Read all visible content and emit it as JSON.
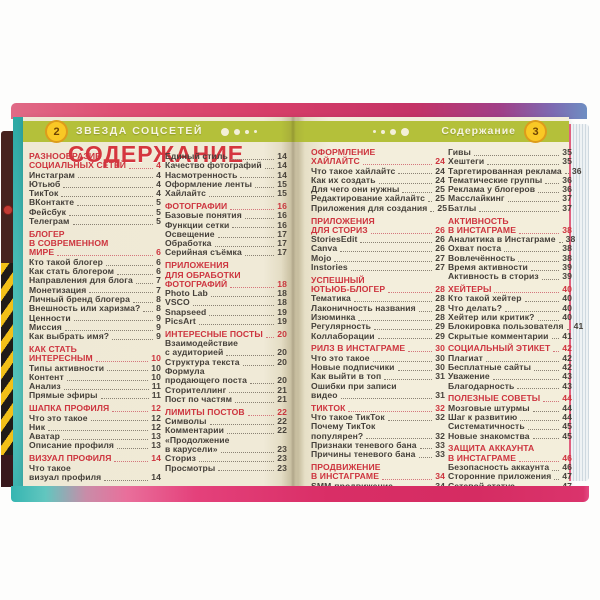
{
  "book": {
    "left_header": {
      "page_num": "2",
      "title": "ЗВЕЗДА СОЦСЕТЕЙ"
    },
    "right_header": {
      "page_num": "3",
      "title": "Содержание"
    },
    "toc_title": "СОДЕРЖАНИЕ",
    "colors": {
      "header_band": "#b4c03a",
      "heading_red": "#cd343e",
      "title_red": "#d5363e",
      "page_cream": "#f0ead7",
      "circle_yellow": "#f9c825",
      "cover_magenta": "#d63e68",
      "edge_teal": "#47bab4",
      "caution_yellow": "#f2c018",
      "caution_black": "#201c18"
    },
    "columns": [
      {
        "entries": [
          {
            "kind": "h",
            "lines": [
              "РАЗНООБРАЗИЕ",
              "СОЦИАЛЬНЫХ СЕТЕЙ"
            ],
            "page": "4"
          },
          {
            "kind": "i",
            "lines": [
              "Инстаграм"
            ],
            "page": "4"
          },
          {
            "kind": "i",
            "lines": [
              "Ютьюб"
            ],
            "page": "4"
          },
          {
            "kind": "i",
            "lines": [
              "ТикТок"
            ],
            "page": "4"
          },
          {
            "kind": "i",
            "lines": [
              "ВКонтакте"
            ],
            "page": "5"
          },
          {
            "kind": "i",
            "lines": [
              "Фейсбук"
            ],
            "page": "5"
          },
          {
            "kind": "i",
            "lines": [
              "Телеграм"
            ],
            "page": "5"
          },
          {
            "kind": "h",
            "lines": [
              "БЛОГЕР",
              "В СОВРЕМЕННОМ",
              "МИРЕ"
            ],
            "page": "6"
          },
          {
            "kind": "i",
            "lines": [
              "Кто такой блогер"
            ],
            "page": "6"
          },
          {
            "kind": "i",
            "lines": [
              "Как стать блогером"
            ],
            "page": "6"
          },
          {
            "kind": "i",
            "lines": [
              "Направления для блога"
            ],
            "page": "7"
          },
          {
            "kind": "i",
            "lines": [
              "Монетизация"
            ],
            "page": "7"
          },
          {
            "kind": "i",
            "lines": [
              "Личный бренд блогера"
            ],
            "page": "8"
          },
          {
            "kind": "i",
            "lines": [
              "Внешность или харизма?"
            ],
            "page": "8"
          },
          {
            "kind": "i",
            "lines": [
              "Ценности"
            ],
            "page": "9"
          },
          {
            "kind": "i",
            "lines": [
              "Миссия"
            ],
            "page": "9"
          },
          {
            "kind": "i",
            "lines": [
              "Как выбрать имя?"
            ],
            "page": "9"
          },
          {
            "kind": "h",
            "lines": [
              "КАК СТАТЬ",
              "ИНТЕРЕСНЫМ"
            ],
            "page": "10"
          },
          {
            "kind": "i",
            "lines": [
              "Типы активности"
            ],
            "page": "10"
          },
          {
            "kind": "i",
            "lines": [
              "Контент"
            ],
            "page": "10"
          },
          {
            "kind": "i",
            "lines": [
              "Анализ"
            ],
            "page": "11"
          },
          {
            "kind": "i",
            "lines": [
              "Прямые эфиры"
            ],
            "page": "11"
          },
          {
            "kind": "h",
            "lines": [
              "ШАПКА ПРОФИЛЯ"
            ],
            "page": "12"
          },
          {
            "kind": "i",
            "lines": [
              "Что это такое"
            ],
            "page": "12"
          },
          {
            "kind": "i",
            "lines": [
              "Ник"
            ],
            "page": "12"
          },
          {
            "kind": "i",
            "lines": [
              "Аватар"
            ],
            "page": "13"
          },
          {
            "kind": "i",
            "lines": [
              "Описание профиля"
            ],
            "page": "13"
          },
          {
            "kind": "h",
            "lines": [
              "ВИЗУАЛ ПРОФИЛЯ"
            ],
            "page": "14"
          },
          {
            "kind": "i",
            "lines": [
              "Что такое",
              "визуал профиля"
            ],
            "page": "14"
          }
        ]
      },
      {
        "entries": [
          {
            "kind": "i",
            "lines": [
              "Единый стиль"
            ],
            "page": "14"
          },
          {
            "kind": "i",
            "lines": [
              "Качество фотографий"
            ],
            "page": "14"
          },
          {
            "kind": "i",
            "lines": [
              "Насмотренность"
            ],
            "page": "14"
          },
          {
            "kind": "i",
            "lines": [
              "Оформление ленты"
            ],
            "page": "15"
          },
          {
            "kind": "i",
            "lines": [
              "Хайлайтс"
            ],
            "page": "15"
          },
          {
            "kind": "h",
            "lines": [
              "ФОТОГРАФИИ"
            ],
            "page": "16"
          },
          {
            "kind": "i",
            "lines": [
              "Базовые понятия"
            ],
            "page": "16"
          },
          {
            "kind": "i",
            "lines": [
              "Функции сетки"
            ],
            "page": "16"
          },
          {
            "kind": "i",
            "lines": [
              "Освещение"
            ],
            "page": "17"
          },
          {
            "kind": "i",
            "lines": [
              "Обработка"
            ],
            "page": "17"
          },
          {
            "kind": "i",
            "lines": [
              "Серийная съёмка"
            ],
            "page": "17"
          },
          {
            "kind": "h",
            "lines": [
              "ПРИЛОЖЕНИЯ",
              "ДЛЯ ОБРАБОТКИ",
              "ФОТОГРАФИЙ"
            ],
            "page": "18"
          },
          {
            "kind": "i",
            "lines": [
              "Photo Lab"
            ],
            "page": "18"
          },
          {
            "kind": "i",
            "lines": [
              "VSCO"
            ],
            "page": "18"
          },
          {
            "kind": "i",
            "lines": [
              "Snapseed"
            ],
            "page": "19"
          },
          {
            "kind": "i",
            "lines": [
              "PicsArt"
            ],
            "page": "19"
          },
          {
            "kind": "h",
            "lines": [
              "ИНТЕРЕСНЫЕ ПОСТЫ"
            ],
            "page": "20"
          },
          {
            "kind": "i",
            "lines": [
              "Взаимодействие",
              "с аудиторией"
            ],
            "page": "20"
          },
          {
            "kind": "i",
            "lines": [
              "Структура текста"
            ],
            "page": "20"
          },
          {
            "kind": "i",
            "lines": [
              "Формула",
              "продающего поста"
            ],
            "page": "20"
          },
          {
            "kind": "i",
            "lines": [
              "Сторителлинг"
            ],
            "page": "21"
          },
          {
            "kind": "i",
            "lines": [
              "Пост по частям"
            ],
            "page": "21"
          },
          {
            "kind": "h",
            "lines": [
              "ЛИМИТЫ ПОСТОВ"
            ],
            "page": "22"
          },
          {
            "kind": "i",
            "lines": [
              "Символы"
            ],
            "page": "22"
          },
          {
            "kind": "i",
            "lines": [
              "Комментарии"
            ],
            "page": "22"
          },
          {
            "kind": "i",
            "lines": [
              "«Продолжение",
              "в карусели»"
            ],
            "page": "23"
          },
          {
            "kind": "i",
            "lines": [
              "Сториз"
            ],
            "page": "23"
          },
          {
            "kind": "i",
            "lines": [
              "Просмотры"
            ],
            "page": "23"
          }
        ]
      },
      {
        "entries": [
          {
            "kind": "h",
            "lines": [
              "ОФОРМЛЕНИЕ",
              "ХАЙЛАЙТС"
            ],
            "page": "24"
          },
          {
            "kind": "i",
            "lines": [
              "Что такое хайлайтс"
            ],
            "page": "24"
          },
          {
            "kind": "i",
            "lines": [
              "Как их создать"
            ],
            "page": "24"
          },
          {
            "kind": "i",
            "lines": [
              "Для чего они нужны"
            ],
            "page": "25"
          },
          {
            "kind": "i",
            "lines": [
              "Редактирование хайлайтс"
            ],
            "page": "25"
          },
          {
            "kind": "i",
            "lines": [
              "Приложения для создания"
            ],
            "page": "25"
          },
          {
            "kind": "h",
            "lines": [
              "ПРИЛОЖЕНИЯ",
              "ДЛЯ СТОРИЗ"
            ],
            "page": "26"
          },
          {
            "kind": "i",
            "lines": [
              "StoriesEdit"
            ],
            "page": "26"
          },
          {
            "kind": "i",
            "lines": [
              "Canva"
            ],
            "page": "26"
          },
          {
            "kind": "i",
            "lines": [
              "Mojo"
            ],
            "page": "27"
          },
          {
            "kind": "i",
            "lines": [
              "Instories"
            ],
            "page": "27"
          },
          {
            "kind": "h",
            "lines": [
              "УСПЕШНЫЙ",
              "ЮТЬЮБ-БЛОГЕР"
            ],
            "page": "28"
          },
          {
            "kind": "i",
            "lines": [
              "Тематика"
            ],
            "page": "28"
          },
          {
            "kind": "i",
            "lines": [
              "Лаконичность названия"
            ],
            "page": "28"
          },
          {
            "kind": "i",
            "lines": [
              "Изюминка"
            ],
            "page": "28"
          },
          {
            "kind": "i",
            "lines": [
              "Регулярность"
            ],
            "page": "29"
          },
          {
            "kind": "i",
            "lines": [
              "Коллаборации"
            ],
            "page": "29"
          },
          {
            "kind": "h",
            "lines": [
              "РИЛЗ В ИНСТАГРАМЕ"
            ],
            "page": "30"
          },
          {
            "kind": "i",
            "lines": [
              "Что это такое"
            ],
            "page": "30"
          },
          {
            "kind": "i",
            "lines": [
              "Новые подписчики"
            ],
            "page": "30"
          },
          {
            "kind": "i",
            "lines": [
              "Как выйти в топ"
            ],
            "page": "31"
          },
          {
            "kind": "i",
            "lines": [
              "Ошибки при записи",
              "видео"
            ],
            "page": "31"
          },
          {
            "kind": "h",
            "lines": [
              "ТИКТОК"
            ],
            "page": "32"
          },
          {
            "kind": "i",
            "lines": [
              "Что такое ТикТок"
            ],
            "page": "32"
          },
          {
            "kind": "i",
            "lines": [
              "Почему ТикТок",
              "популярен?"
            ],
            "page": "32"
          },
          {
            "kind": "i",
            "lines": [
              "Признаки теневого бана"
            ],
            "page": "33"
          },
          {
            "kind": "i",
            "lines": [
              "Причины теневого бана"
            ],
            "page": "33"
          },
          {
            "kind": "h",
            "lines": [
              "ПРОДВИЖЕНИЕ",
              "В ИНСТАГРАМЕ"
            ],
            "page": "34"
          },
          {
            "kind": "i",
            "lines": [
              "SMM-продвижение"
            ],
            "page": "34"
          },
          {
            "kind": "i",
            "lines": [
              "Взаимопиар"
            ],
            "page": "34"
          }
        ]
      },
      {
        "entries": [
          {
            "kind": "i",
            "lines": [
              "Гивы"
            ],
            "page": "35"
          },
          {
            "kind": "i",
            "lines": [
              "Хештеги"
            ],
            "page": "35"
          },
          {
            "kind": "i",
            "lines": [
              "Таргетированная реклама"
            ],
            "page": "36"
          },
          {
            "kind": "i",
            "lines": [
              "Тематические группы"
            ],
            "page": "36"
          },
          {
            "kind": "i",
            "lines": [
              "Реклама у блогеров"
            ],
            "page": "36"
          },
          {
            "kind": "i",
            "lines": [
              "Масслайкинг"
            ],
            "page": "37"
          },
          {
            "kind": "i",
            "lines": [
              "Батлы"
            ],
            "page": "37"
          },
          {
            "kind": "h",
            "lines": [
              "АКТИВНОСТЬ",
              "В ИНСТАГРАМЕ"
            ],
            "page": "38"
          },
          {
            "kind": "i",
            "lines": [
              "Аналитика в Инстаграме"
            ],
            "page": "38"
          },
          {
            "kind": "i",
            "lines": [
              "Охват поста"
            ],
            "page": "38"
          },
          {
            "kind": "i",
            "lines": [
              "Вовлечённость"
            ],
            "page": "38"
          },
          {
            "kind": "i",
            "lines": [
              "Время активности"
            ],
            "page": "39"
          },
          {
            "kind": "i",
            "lines": [
              "Активность в сториз"
            ],
            "page": "39"
          },
          {
            "kind": "h",
            "lines": [
              "ХЕЙТЕРЫ"
            ],
            "page": "40"
          },
          {
            "kind": "i",
            "lines": [
              "Кто такой хейтер"
            ],
            "page": "40"
          },
          {
            "kind": "i",
            "lines": [
              "Что делать?"
            ],
            "page": "40"
          },
          {
            "kind": "i",
            "lines": [
              "Хейтер или критик?"
            ],
            "page": "40"
          },
          {
            "kind": "i",
            "lines": [
              "Блокировка пользователя"
            ],
            "page": "41"
          },
          {
            "kind": "i",
            "lines": [
              "Скрытые комментарии"
            ],
            "page": "41"
          },
          {
            "kind": "h",
            "lines": [
              "СОЦИАЛЬНЫЙ ЭТИКЕТ"
            ],
            "page": "42"
          },
          {
            "kind": "i",
            "lines": [
              "Плагиат"
            ],
            "page": "42"
          },
          {
            "kind": "i",
            "lines": [
              "Бесплатные сайты"
            ],
            "page": "42"
          },
          {
            "kind": "i",
            "lines": [
              "Уважение"
            ],
            "page": "43"
          },
          {
            "kind": "i",
            "lines": [
              "Благодарность"
            ],
            "page": "43"
          },
          {
            "kind": "h",
            "lines": [
              "ПОЛЕЗНЫЕ СОВЕТЫ"
            ],
            "page": "44"
          },
          {
            "kind": "i",
            "lines": [
              "Мозговые штурмы"
            ],
            "page": "44"
          },
          {
            "kind": "i",
            "lines": [
              "Шаг к развитию"
            ],
            "page": "44"
          },
          {
            "kind": "i",
            "lines": [
              "Систематичность"
            ],
            "page": "45"
          },
          {
            "kind": "i",
            "lines": [
              "Новые знакомства"
            ],
            "page": "45"
          },
          {
            "kind": "h",
            "lines": [
              "ЗАЩИТА АККАУНТА",
              "В ИНСТАГРАМЕ"
            ],
            "page": "46"
          },
          {
            "kind": "i",
            "lines": [
              "Безопасность аккаунта"
            ],
            "page": "46"
          },
          {
            "kind": "i",
            "lines": [
              "Сторонние приложения"
            ],
            "page": "47"
          },
          {
            "kind": "i",
            "lines": [
              "Сетевой статус"
            ],
            "page": "47"
          }
        ]
      }
    ]
  }
}
